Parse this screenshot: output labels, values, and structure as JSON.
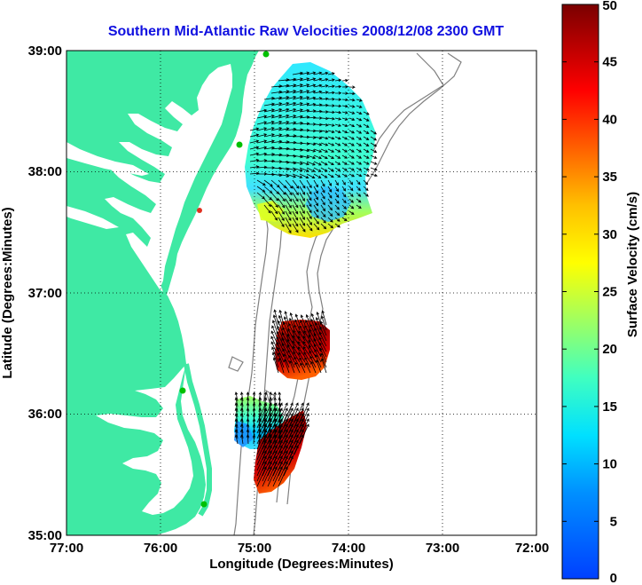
{
  "title": "Southern Mid-Atlantic Raw Velocities 2008/12/08 2300 GMT",
  "colors": {
    "title": "#1010e0",
    "land": "#3fe9a4",
    "coastline_dots": "#00b000",
    "contour": "#808080",
    "station_red": "#e03020"
  },
  "map": {
    "xlabel": "Longitude (Degrees:Minutes)",
    "ylabel": "Latitude (Degrees:Minutes)",
    "x_ticks": [
      "77:00",
      "76:00",
      "75:00",
      "74:00",
      "73:00",
      "72:00"
    ],
    "y_ticks": [
      "39:00",
      "38:00",
      "37:00",
      "36:00",
      "35:00"
    ],
    "lon_range": [
      -77,
      -72
    ],
    "lat_range": [
      35,
      39
    ],
    "grid": "dotted"
  },
  "colorbar": {
    "label": "Surface Velocity (cm/s)",
    "ticks": [
      "0",
      "5",
      "10",
      "15",
      "20",
      "25",
      "30",
      "35",
      "40",
      "45",
      "50"
    ],
    "range": [
      0,
      50
    ]
  }
}
